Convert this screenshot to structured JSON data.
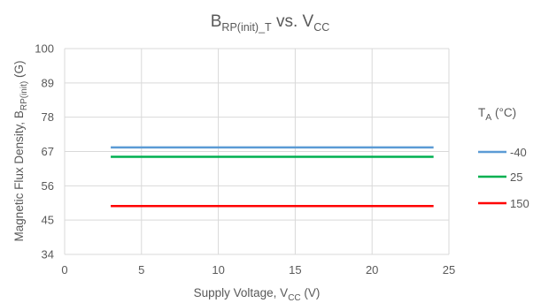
{
  "chart_data": {
    "type": "line",
    "title": {
      "main": "B",
      "sub": "RP(init)_T",
      "rest": " vs. V",
      "sub2": "CC"
    },
    "xlabel": {
      "main": "Supply Voltage, V",
      "sub": "CC",
      "rest": " (V)"
    },
    "ylabel": {
      "main": "Magnetic Flux Density, B",
      "sub": "RP(init)",
      "rest": " (G)"
    },
    "xlim": [
      0,
      25
    ],
    "ylim": [
      34,
      100
    ],
    "xticks": [
      0,
      5,
      10,
      15,
      20,
      25
    ],
    "yticks": [
      34,
      45,
      56,
      67,
      78,
      89,
      100
    ],
    "grid": true,
    "legend_position": "right",
    "legend_title": {
      "main": "T",
      "sub": "A",
      "rest": " (°C)"
    },
    "series": [
      {
        "name": "-40",
        "color": "#5b9bd5",
        "x": [
          3,
          24
        ],
        "y": [
          68.3,
          68.3
        ]
      },
      {
        "name": "25",
        "color": "#00b050",
        "x": [
          3,
          24
        ],
        "y": [
          65.3,
          65.3
        ]
      },
      {
        "name": "150",
        "color": "#ff0000",
        "x": [
          3,
          24
        ],
        "y": [
          49.5,
          49.5
        ]
      }
    ]
  }
}
